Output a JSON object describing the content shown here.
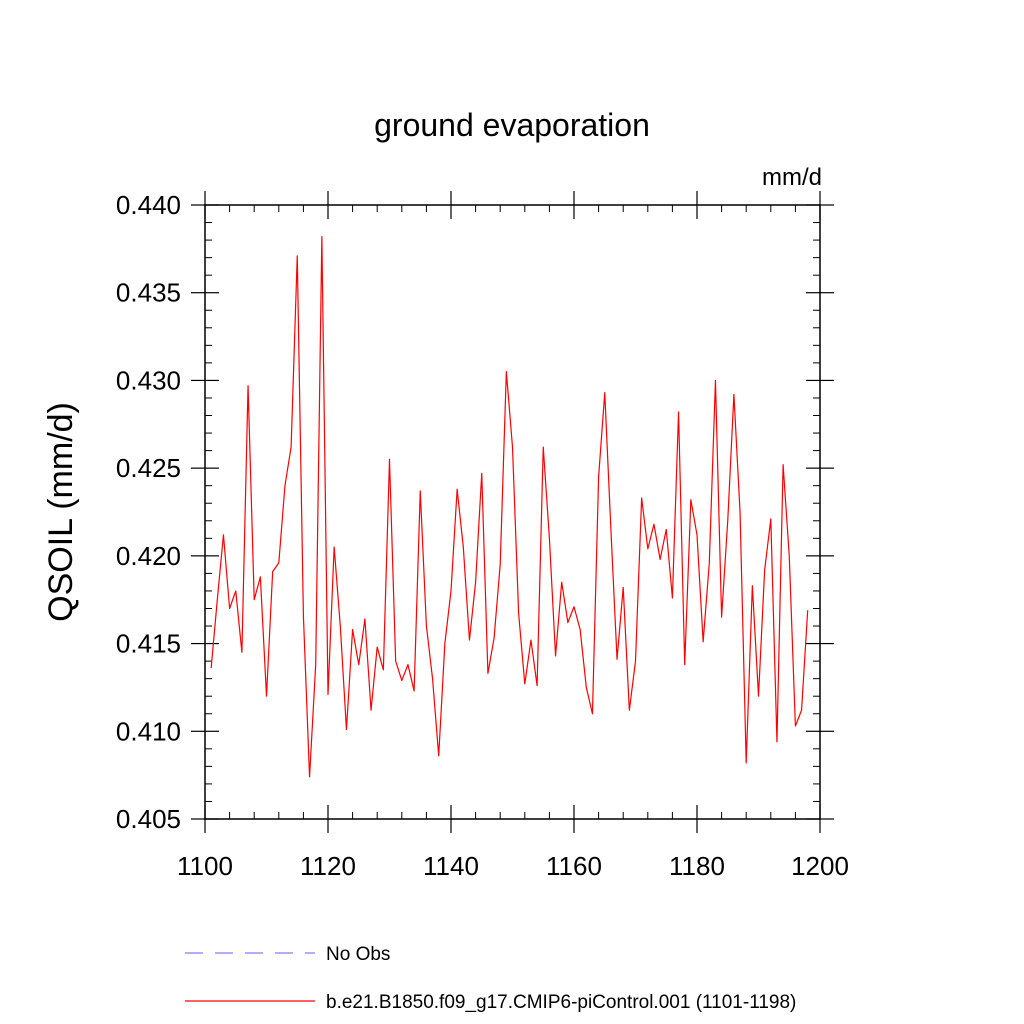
{
  "chart_data": {
    "type": "line",
    "title": "ground evaporation",
    "units": "mm/d",
    "ylabel": "QSOIL  (mm/d)",
    "xlabel": "",
    "xlim": [
      1100,
      1200
    ],
    "ylim": [
      0.405,
      0.44
    ],
    "x_ticks": [
      1100,
      1120,
      1140,
      1160,
      1180,
      1200
    ],
    "x_tick_labels": [
      "1100",
      "1120",
      "1140",
      "1160",
      "1180",
      "1200"
    ],
    "y_ticks": [
      0.405,
      0.41,
      0.415,
      0.42,
      0.425,
      0.43,
      0.435,
      0.44
    ],
    "y_tick_labels": [
      "0.405",
      "0.410",
      "0.415",
      "0.420",
      "0.425",
      "0.430",
      "0.435",
      "0.440"
    ],
    "grid": false,
    "legend_position": "bottom",
    "series": [
      {
        "name": "No Obs",
        "color": "#7f7fff",
        "style": "dashed",
        "x": [],
        "y": []
      },
      {
        "name": "b.e21.B1850.f09_g17.CMIP6-piControl.001 (1101-1198)",
        "color": "#ff0000",
        "style": "solid",
        "x": [
          1101,
          1102,
          1103,
          1104,
          1105,
          1106,
          1107,
          1108,
          1109,
          1110,
          1111,
          1112,
          1113,
          1114,
          1115,
          1116,
          1117,
          1118,
          1119,
          1120,
          1121,
          1122,
          1123,
          1124,
          1125,
          1126,
          1127,
          1128,
          1129,
          1130,
          1131,
          1132,
          1133,
          1134,
          1135,
          1136,
          1137,
          1138,
          1139,
          1140,
          1141,
          1142,
          1143,
          1144,
          1145,
          1146,
          1147,
          1148,
          1149,
          1150,
          1151,
          1152,
          1153,
          1154,
          1155,
          1156,
          1157,
          1158,
          1159,
          1160,
          1161,
          1162,
          1163,
          1164,
          1165,
          1166,
          1167,
          1168,
          1169,
          1170,
          1171,
          1172,
          1173,
          1174,
          1175,
          1176,
          1177,
          1178,
          1179,
          1180,
          1181,
          1182,
          1183,
          1184,
          1185,
          1186,
          1187,
          1188,
          1189,
          1190,
          1191,
          1192,
          1193,
          1194,
          1195,
          1196,
          1197,
          1198
        ],
        "y": [
          0.4136,
          0.4175,
          0.4212,
          0.417,
          0.418,
          0.4145,
          0.4297,
          0.4175,
          0.4188,
          0.412,
          0.4191,
          0.4196,
          0.424,
          0.4262,
          0.4371,
          0.4166,
          0.4074,
          0.4138,
          0.4382,
          0.4121,
          0.4205,
          0.416,
          0.4101,
          0.4158,
          0.4138,
          0.4164,
          0.4112,
          0.4148,
          0.4135,
          0.4255,
          0.414,
          0.4129,
          0.4138,
          0.4123,
          0.4237,
          0.416,
          0.413,
          0.4086,
          0.415,
          0.418,
          0.4238,
          0.4205,
          0.4152,
          0.4185,
          0.4247,
          0.4133,
          0.4153,
          0.4195,
          0.4305,
          0.4262,
          0.4167,
          0.4127,
          0.4152,
          0.4126,
          0.4262,
          0.421,
          0.4143,
          0.4185,
          0.4162,
          0.4171,
          0.4158,
          0.4125,
          0.411,
          0.4245,
          0.4293,
          0.4215,
          0.4141,
          0.4182,
          0.4112,
          0.414,
          0.4233,
          0.4204,
          0.4218,
          0.4198,
          0.4215,
          0.4176,
          0.4282,
          0.4138,
          0.4232,
          0.4212,
          0.4151,
          0.4196,
          0.43,
          0.4165,
          0.422,
          0.4292,
          0.4225,
          0.4082,
          0.4183,
          0.412,
          0.4192,
          0.4221,
          0.4094,
          0.4252,
          0.42,
          0.4103,
          0.4112,
          0.4169
        ]
      }
    ]
  }
}
